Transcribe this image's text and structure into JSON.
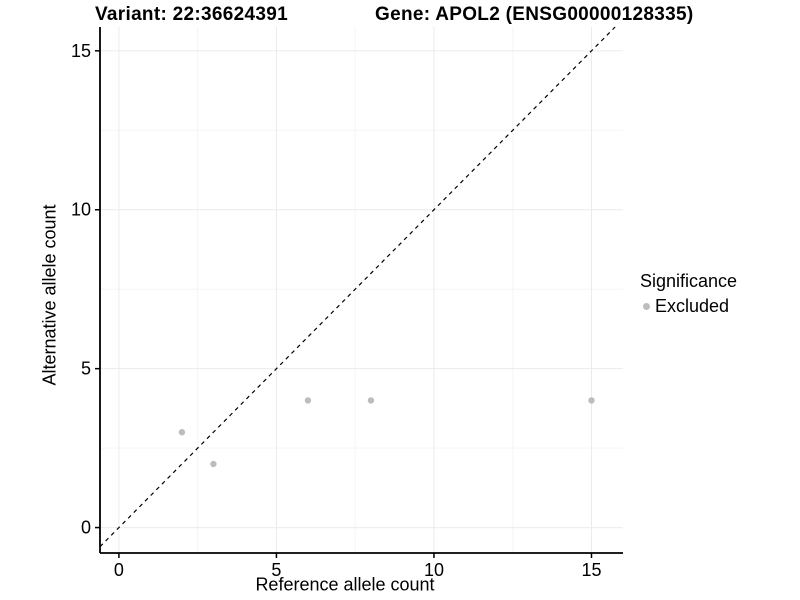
{
  "chart_data": {
    "type": "scatter",
    "title_left": "Variant: 22:36624391",
    "title_right": "Gene: APOL2 (ENSG00000128335)",
    "xlabel": "Reference allele count",
    "ylabel": "Alternative allele count",
    "xlim": [
      -0.6,
      16.0
    ],
    "ylim": [
      -0.8,
      15.75
    ],
    "xticks": [
      0,
      5,
      10,
      15
    ],
    "yticks": [
      0,
      5,
      10,
      15
    ],
    "x_minor_breaks": [
      2.5,
      7.5,
      12.5
    ],
    "y_minor_breaks": [
      2.5,
      7.5,
      12.5
    ],
    "grid": true,
    "series": [
      {
        "name": "Excluded",
        "color": "#bdbdbd",
        "points": [
          [
            2,
            3
          ],
          [
            3,
            2
          ],
          [
            6,
            4
          ],
          [
            8,
            4
          ],
          [
            15,
            4
          ]
        ]
      }
    ],
    "reference_line": {
      "type": "identity",
      "style": "dashed",
      "color": "#000000"
    },
    "legend": {
      "title": "Significance",
      "position": "right",
      "entries": [
        {
          "label": "Excluded",
          "color": "#bdbdbd"
        }
      ]
    },
    "colors": {
      "grid_major": "#ebebeb",
      "grid_minor": "#f5f5f5",
      "axis": "#000000",
      "tick_text": "#000000",
      "background": "#ffffff"
    }
  }
}
